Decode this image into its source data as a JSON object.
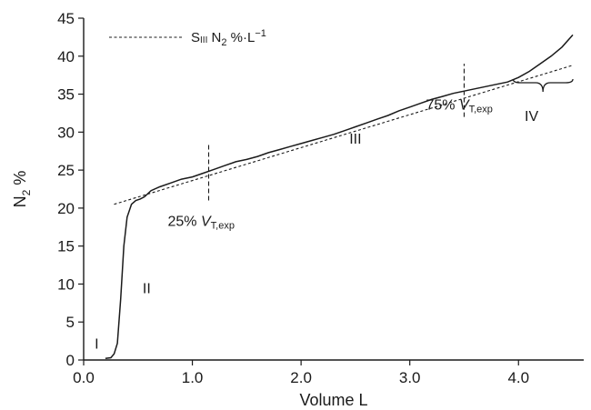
{
  "chart_data": {
    "type": "line",
    "xlabel": "Volume L",
    "ylabel_main": "N",
    "ylabel_sub": "2",
    "ylabel_rest": " %",
    "xlim": [
      0,
      4.6
    ],
    "ylim": [
      0,
      45
    ],
    "x_ticks": [
      0,
      1,
      2,
      3,
      4
    ],
    "x_tick_labels": [
      "0.0",
      "1.0",
      "2.0",
      "3.0",
      "4.0"
    ],
    "y_ticks": [
      0,
      5,
      10,
      15,
      20,
      25,
      30,
      35,
      40,
      45
    ],
    "y_tick_labels": [
      "0",
      "5",
      "10",
      "15",
      "20",
      "25",
      "30",
      "35",
      "40",
      "45"
    ],
    "series": [
      {
        "style": "solid",
        "x": [
          0.2,
          0.25,
          0.28,
          0.31,
          0.34,
          0.37,
          0.4,
          0.44,
          0.48,
          0.52,
          0.56,
          0.62,
          0.7,
          0.8,
          0.9,
          1.0,
          1.1,
          1.2,
          1.3,
          1.4,
          1.5,
          1.6,
          1.7,
          1.8,
          1.9,
          2.0,
          2.1,
          2.2,
          2.3,
          2.4,
          2.5,
          2.6,
          2.7,
          2.8,
          2.9,
          3.0,
          3.1,
          3.2,
          3.3,
          3.4,
          3.5,
          3.6,
          3.7,
          3.8,
          3.9,
          4.0,
          4.1,
          4.2,
          4.3,
          4.4,
          4.5
        ],
        "y": [
          0.2,
          0.3,
          0.8,
          2.2,
          8.0,
          15.0,
          18.8,
          20.5,
          21.0,
          21.2,
          21.5,
          22.3,
          22.8,
          23.3,
          23.8,
          24.1,
          24.6,
          25.1,
          25.6,
          26.1,
          26.4,
          26.8,
          27.3,
          27.7,
          28.1,
          28.5,
          28.9,
          29.3,
          29.7,
          30.2,
          30.7,
          31.2,
          31.7,
          32.2,
          32.8,
          33.3,
          33.8,
          34.3,
          34.7,
          35.1,
          35.4,
          35.7,
          36.0,
          36.3,
          36.6,
          37.2,
          38.0,
          39.0,
          40.0,
          41.2,
          42.8
        ]
      },
      {
        "style": "dashed",
        "x": [
          0.28,
          4.5
        ],
        "y": [
          20.5,
          38.8
        ]
      }
    ],
    "legend": {
      "label_s": "S",
      "label_sub": "III",
      "label_n": " N",
      "label_n_sub": "2",
      "label_unit": " %·L",
      "label_exp": "−1"
    },
    "markers": [
      {
        "x": 1.15,
        "y_from": 21.0,
        "y_to": 28.5,
        "label_pct": "25% ",
        "label_v": "V",
        "label_sub": "T,exp"
      },
      {
        "x": 3.5,
        "y_from": 32.0,
        "y_to": 39.0,
        "label_pct": "75% ",
        "label_v": "V",
        "label_sub": "T,exp"
      }
    ],
    "phases": [
      {
        "label": "I",
        "x": 0.12,
        "y": 1.5
      },
      {
        "label": "II",
        "x": 0.58,
        "y": 8.8
      },
      {
        "label": "III",
        "x": 2.5,
        "y": 28.5
      },
      {
        "label": "IV",
        "x": 4.12,
        "y": 31.5
      }
    ],
    "brace": {
      "x_from": 3.95,
      "x_to": 4.5,
      "y": 36.5
    }
  }
}
